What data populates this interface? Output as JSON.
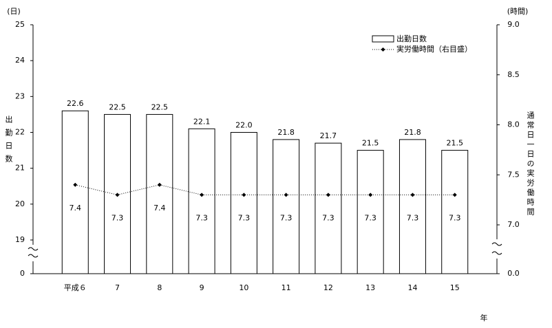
{
  "chart_data": {
    "type": "bar",
    "categories": [
      "平成６",
      "7",
      "8",
      "9",
      "10",
      "11",
      "12",
      "13",
      "14",
      "15"
    ],
    "series": [
      {
        "name": "出勤日数",
        "type": "bar",
        "color": "#ffffff",
        "values": [
          22.6,
          22.5,
          22.5,
          22.1,
          22.0,
          21.8,
          21.7,
          21.5,
          21.8,
          21.5
        ],
        "value_labels": [
          "22.6",
          "22.5",
          "22.5",
          "22.1",
          "22.0",
          "21.8",
          "21.7",
          "21.5",
          "21.8",
          "21.5"
        ]
      },
      {
        "name": "実労働時間（右目盛）",
        "type": "line",
        "axis": "y2",
        "color": "#000000",
        "values": [
          7.4,
          7.3,
          7.4,
          7.3,
          7.3,
          7.3,
          7.3,
          7.3,
          7.3,
          7.3
        ]
      }
    ],
    "ylim": [
      0,
      25
    ],
    "y_break": [
      0,
      19
    ],
    "yticks": [
      0,
      19,
      20,
      21,
      22,
      23,
      24,
      25
    ],
    "y2lim": [
      0,
      9
    ],
    "y2_break": [
      0,
      7
    ],
    "y2ticks": [
      {
        "value": 0,
        "label": "0.0"
      },
      {
        "value": 7,
        "label": "7.0"
      },
      {
        "value": 7.5,
        "label": "7.5"
      },
      {
        "value": 8,
        "label": "8.0"
      },
      {
        "value": 8.5,
        "label": "8.5"
      },
      {
        "value": 9,
        "label": "9.0"
      }
    ],
    "ylabel": "出勤日数",
    "y2label": "通常日一日の実労働時間",
    "yunit": "(日)",
    "y2unit": "(時間)",
    "xlabel": "年"
  }
}
